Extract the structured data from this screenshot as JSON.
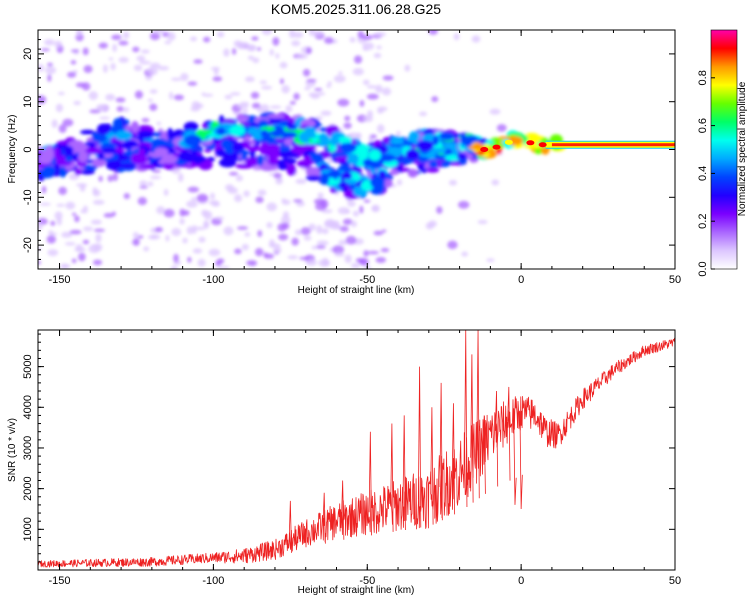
{
  "figure_title": "KOM5.2025.311.06.28.G25",
  "chart_data": [
    {
      "type": "heatmap",
      "title": "KOM5.2025.311.06.28.G25",
      "xlabel": "Height of straight line (km)",
      "ylabel": "Frequency (Hz)",
      "xlim": [
        -157,
        50
      ],
      "ylim": [
        -25,
        25
      ],
      "xticks": [
        -150,
        -100,
        -50,
        0,
        50
      ],
      "xtick_labels": [
        "-150",
        "-100",
        "-50",
        "0",
        "50"
      ],
      "yticks": [
        -20,
        -10,
        0,
        10,
        20
      ],
      "ytick_labels": [
        "-20",
        "-10",
        "0",
        "10",
        "20"
      ],
      "colorbar": {
        "label": "Normalized spectral amplitude",
        "range": [
          0,
          1
        ],
        "ticks": [
          0.0,
          0.2,
          0.4,
          0.6,
          0.8
        ],
        "tick_labels": [
          "0.0",
          "0.2",
          "0.4",
          "0.6",
          "0.8"
        ],
        "colormap": [
          "#ffffff",
          "#dcc6ff",
          "#aa66ff",
          "#7a00ff",
          "#2200ff",
          "#0044ff",
          "#00aaff",
          "#00ffee",
          "#00ff66",
          "#66ff00",
          "#ffff00",
          "#ff9900",
          "#ff0000",
          "#ff00aa"
        ]
      },
      "ridge": [
        [
          -155,
          -3
        ],
        [
          -140,
          1
        ],
        [
          -130,
          3
        ],
        [
          -120,
          1
        ],
        [
          -110,
          1
        ],
        [
          -100,
          4
        ],
        [
          -90,
          4
        ],
        [
          -80,
          4
        ],
        [
          -70,
          3
        ],
        [
          -60,
          1
        ],
        [
          -50,
          -2
        ],
        [
          -40,
          0
        ],
        [
          -30,
          1
        ],
        [
          -20,
          0
        ],
        [
          -10,
          0
        ],
        [
          -2,
          2
        ],
        [
          0,
          2
        ],
        [
          5,
          1
        ],
        [
          10,
          1
        ],
        [
          20,
          1
        ],
        [
          30,
          1
        ],
        [
          40,
          1
        ],
        [
          50,
          1
        ]
      ],
      "secondary_ridge": [
        [
          -155,
          -3
        ],
        [
          -135,
          -2
        ],
        [
          -115,
          -1
        ],
        [
          -100,
          -1
        ],
        [
          -85,
          -1
        ],
        [
          -70,
          -3
        ],
        [
          -60,
          -6
        ],
        [
          -50,
          -8
        ],
        [
          -40,
          -3
        ],
        [
          -30,
          -2
        ],
        [
          -20,
          -1
        ]
      ]
    },
    {
      "type": "line",
      "xlabel": "Height of straight line (km)",
      "ylabel": "SNR (10 * v/v)",
      "xlim": [
        -157,
        50
      ],
      "ylim": [
        0,
        5900
      ],
      "xticks": [
        -150,
        -100,
        -50,
        0,
        50
      ],
      "xtick_labels": [
        "-150",
        "-100",
        "-50",
        "0",
        "50"
      ],
      "yticks": [
        1000,
        2000,
        3000,
        4000,
        5000
      ],
      "ytick_labels": [
        "1000",
        "2000",
        "3000",
        "4000",
        "5000"
      ],
      "color": "#ee2222",
      "baseline": [
        [
          -157,
          150
        ],
        [
          -120,
          200
        ],
        [
          -100,
          300
        ],
        [
          -90,
          350
        ],
        [
          -80,
          500
        ],
        [
          -70,
          900
        ],
        [
          -60,
          1200
        ],
        [
          -50,
          1400
        ],
        [
          -40,
          1600
        ],
        [
          -30,
          1800
        ],
        [
          -20,
          2400
        ],
        [
          -10,
          3300
        ],
        [
          0,
          3900
        ],
        [
          5,
          3800
        ],
        [
          8,
          3400
        ],
        [
          12,
          3300
        ],
        [
          20,
          4200
        ],
        [
          30,
          4900
        ],
        [
          40,
          5400
        ],
        [
          50,
          5600
        ]
      ],
      "noise_amplitude": [
        [
          -157,
          80
        ],
        [
          -100,
          130
        ],
        [
          -80,
          250
        ],
        [
          -60,
          450
        ],
        [
          -40,
          650
        ],
        [
          -20,
          900
        ],
        [
          -10,
          700
        ],
        [
          0,
          450
        ],
        [
          10,
          350
        ],
        [
          20,
          250
        ],
        [
          35,
          150
        ],
        [
          50,
          120
        ]
      ],
      "spikes": [
        {
          "x": -75,
          "y": 1700
        },
        {
          "x": -64,
          "y": 1900
        },
        {
          "x": -58,
          "y": 2200
        },
        {
          "x": -49,
          "y": 3400
        },
        {
          "x": -42,
          "y": 3600
        },
        {
          "x": -38,
          "y": 3800
        },
        {
          "x": -33,
          "y": 5000
        },
        {
          "x": -29,
          "y": 4000
        },
        {
          "x": -26,
          "y": 4600
        },
        {
          "x": -22,
          "y": 4100
        },
        {
          "x": -18,
          "y": 5900
        },
        {
          "x": -16,
          "y": 5300
        },
        {
          "x": -14,
          "y": 5900
        },
        {
          "x": -12,
          "y": 3800
        },
        {
          "x": -8,
          "y": 4400
        },
        {
          "x": -4,
          "y": 4500
        },
        {
          "x": -2,
          "y": 1600
        },
        {
          "x": 0,
          "y": 1500
        }
      ]
    }
  ]
}
